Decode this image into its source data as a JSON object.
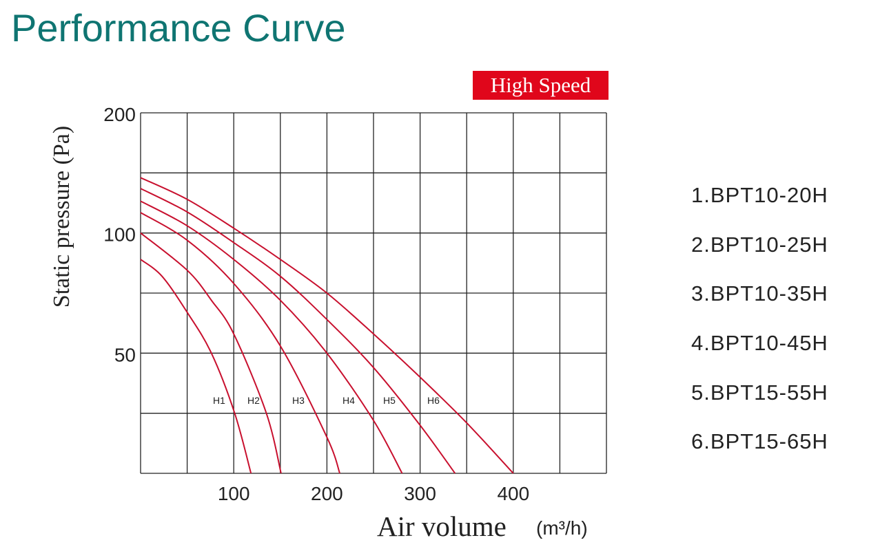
{
  "title": "Performance Curve",
  "badge": "High Speed",
  "legend": [
    "1.BPT10-20H",
    "2.BPT10-25H",
    "3.BPT10-35H",
    "4.BPT10-45H",
    "5.BPT15-55H",
    "6.BPT15-65H"
  ],
  "colors": {
    "title": "#0f7572",
    "badge": "#e0061b",
    "curve": "#c8102e",
    "grid": "#222222"
  },
  "chart_data": {
    "type": "line",
    "title": "Performance Curve",
    "xlabel": "Air volume",
    "xunit": "(m³/h)",
    "ylabel": "Static pressure (Pa)",
    "xlim": [
      0,
      500
    ],
    "x_gridlines": [
      0,
      50,
      100,
      150,
      200,
      250,
      300,
      350,
      400,
      450,
      500
    ],
    "x_tick_labels": [
      100,
      200,
      300,
      400
    ],
    "y_gridlines": [
      0,
      25,
      50,
      75,
      100,
      150,
      200
    ],
    "y_tick_labels": [
      50,
      100,
      200
    ],
    "grid": true,
    "series": [
      {
        "name": "H1",
        "points": [
          [
            0,
            89
          ],
          [
            23,
            82
          ],
          [
            50,
            67
          ],
          [
            76,
            50
          ],
          [
            101,
            25
          ],
          [
            118.5,
            0
          ]
        ]
      },
      {
        "name": "H2",
        "points": [
          [
            0,
            100
          ],
          [
            50,
            84.5
          ],
          [
            76,
            72
          ],
          [
            100,
            58
          ],
          [
            135,
            25
          ],
          [
            150.8,
            0
          ]
        ]
      },
      {
        "name": "H3",
        "points": [
          [
            0,
            117
          ],
          [
            50,
            97
          ],
          [
            100,
            79
          ],
          [
            150,
            53
          ],
          [
            200,
            15
          ],
          [
            213.8,
            0
          ]
        ]
      },
      {
        "name": "H4",
        "points": [
          [
            0,
            126.5
          ],
          [
            50,
            106
          ],
          [
            100,
            89
          ],
          [
            150,
            72
          ],
          [
            200,
            50
          ],
          [
            250,
            22
          ],
          [
            280.7,
            0
          ]
        ]
      },
      {
        "name": "H5",
        "points": [
          [
            0,
            137
          ],
          [
            50,
            117.5
          ],
          [
            100,
            96
          ],
          [
            150,
            82
          ],
          [
            200,
            64
          ],
          [
            250,
            44
          ],
          [
            300,
            20
          ],
          [
            337.5,
            0
          ]
        ]
      },
      {
        "name": "H6",
        "points": [
          [
            0,
            146
          ],
          [
            50,
            128
          ],
          [
            100,
            104
          ],
          [
            150,
            89
          ],
          [
            200,
            75
          ],
          [
            250,
            58
          ],
          [
            300,
            40
          ],
          [
            350,
            21
          ],
          [
            400,
            0
          ]
        ]
      }
    ]
  }
}
